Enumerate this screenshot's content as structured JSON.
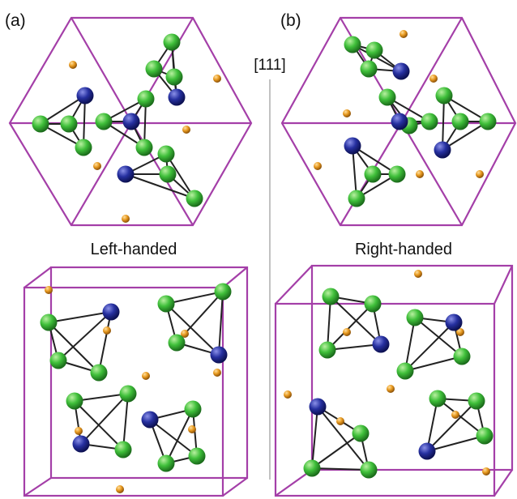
{
  "panels": [
    {
      "label": "(a)",
      "caption": "Left-handed"
    },
    {
      "label": "(b)",
      "caption": "Right-handed"
    }
  ],
  "axis_label": "[111]"
}
